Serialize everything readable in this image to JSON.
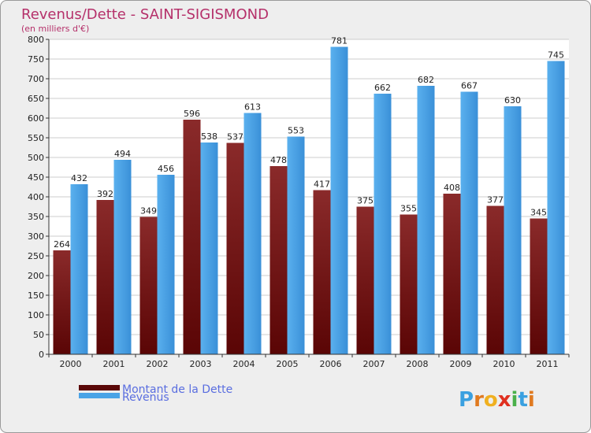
{
  "chart_data": {
    "type": "bar",
    "title": "Revenus/Dette - SAINT-SIGISMOND",
    "subtitle": "(en milliers d'€)",
    "categories": [
      "2000",
      "2001",
      "2002",
      "2003",
      "2004",
      "2005",
      "2006",
      "2007",
      "2008",
      "2009",
      "2010",
      "2011"
    ],
    "series": [
      {
        "name": "Montant de la Dette",
        "values": [
          264,
          392,
          349,
          596,
          537,
          478,
          417,
          375,
          355,
          408,
          377,
          345
        ],
        "color": "#7a1a1a"
      },
      {
        "name": "Revenus",
        "values": [
          432,
          494,
          456,
          538,
          613,
          553,
          781,
          662,
          682,
          667,
          630,
          745
        ],
        "color": "#4aa3e6"
      }
    ],
    "ylim": [
      0,
      800
    ],
    "yticks": [
      0,
      50,
      100,
      150,
      200,
      250,
      300,
      350,
      400,
      450,
      500,
      550,
      600,
      650,
      700,
      750,
      800
    ],
    "grid": true,
    "legend_position": "bottom-left"
  },
  "logo": {
    "letters": [
      "P",
      "r",
      "o",
      "x",
      "i",
      "t",
      "i"
    ],
    "colors": [
      "#3aa0e0",
      "#e07a20",
      "#f0b020",
      "#e03020",
      "#4ab04a",
      "#3aa0e0",
      "#e07a20"
    ]
  }
}
